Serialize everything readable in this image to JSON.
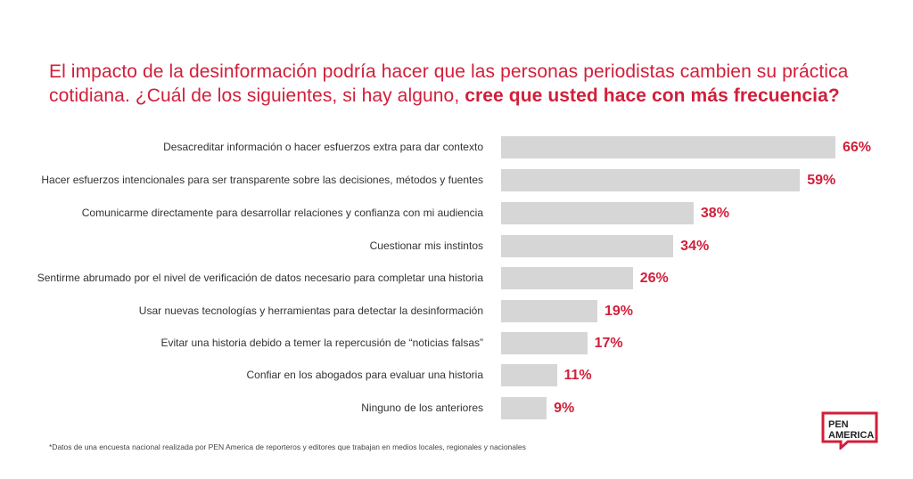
{
  "title": {
    "normal": "El impacto de la desinformación podría hacer que las personas periodistas cambien su práctica cotidiana. ¿Cuál de los siguientes, si hay alguno, ",
    "bold": "cree que usted hace con más frecuencia?"
  },
  "chart_data": {
    "type": "bar",
    "orientation": "horizontal",
    "categories": [
      "Desacreditar información o hacer esfuerzos extra para dar contexto",
      "Hacer esfuerzos intencionales para ser transparente sobre las decisiones, métodos y fuentes",
      "Comunicarme directamente para desarrollar relaciones y confianza con mi audiencia",
      "Cuestionar mis instintos",
      "Sentirme abrumado por el nivel de verificación de datos necesario para completar una historia",
      "Usar nuevas tecnologías y herramientas para detectar la desinformación",
      "Evitar una historia debido a temer la repercusión de “noticias falsas”",
      "Confiar en los abogados para evaluar una historia",
      "Ninguno de los anteriores"
    ],
    "values": [
      66,
      59,
      38,
      34,
      26,
      19,
      17,
      11,
      9
    ],
    "value_labels": [
      "66%",
      "59%",
      "38%",
      "34%",
      "26%",
      "19%",
      "17%",
      "11%",
      "9%"
    ],
    "bar_color": "#d6d6d6",
    "value_color": "#d11f3a",
    "grid": false
  },
  "footnote": "*Datos de una encuesta nacional realizada por PEN America de reporteros y editores que trabajan en medios locales, regionales y nacionales",
  "logo": {
    "line1": "PEN",
    "line2": "AMERICA",
    "color": "#d11f3a"
  }
}
